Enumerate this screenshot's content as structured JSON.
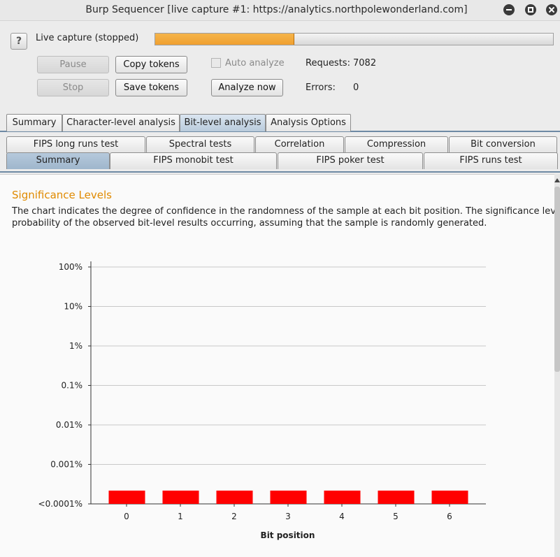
{
  "window": {
    "title": "Burp Sequencer [live capture #1: https://analytics.northpolewonderland.com]"
  },
  "capture": {
    "help_glyph": "?",
    "status": "Live capture (stopped)",
    "progress": 0.35
  },
  "buttons": {
    "pause": "Pause",
    "copy_tokens": "Copy tokens",
    "stop": "Stop",
    "save_tokens": "Save tokens",
    "analyze_now": "Analyze now"
  },
  "options": {
    "auto_analyze": "Auto analyze",
    "auto_analyze_checked": false
  },
  "stats": {
    "requests_label": "Requests:",
    "requests_value": "7082",
    "errors_label": "Errors:",
    "errors_value": "0"
  },
  "tabs": [
    "Summary",
    "Character-level analysis",
    "Bit-level analysis",
    "Analysis Options"
  ],
  "active_tab": "Bit-level analysis",
  "subtabs_row1": [
    "FIPS long runs test",
    "Spectral tests",
    "Correlation",
    "Compression",
    "Bit conversion"
  ],
  "subtabs_row2": [
    "Summary",
    "FIPS monobit test",
    "FIPS poker test",
    "FIPS runs test"
  ],
  "active_subtab": "Summary",
  "content": {
    "heading": "Significance Levels",
    "desc_line1": "The chart indicates the degree of confidence in the randomness of the sample at each bit position. The significance level a",
    "desc_line2": "probability of the observed bit-level results occurring, assuming that the sample is randomly generated."
  },
  "colors": {
    "heading": "#e08a00",
    "bar": "#ff0000",
    "progress": "#f0a030"
  },
  "chart_data": {
    "type": "bar",
    "xlabel": "Bit position",
    "categories": [
      "0",
      "1",
      "2",
      "3",
      "4",
      "5",
      "6"
    ],
    "y_ticks": [
      "100%",
      "10%",
      "1%",
      "0.1%",
      "0.01%",
      "0.001%",
      "<0.0001%"
    ],
    "values": [
      "<0.0001%",
      "<0.0001%",
      "<0.0001%",
      "<0.0001%",
      "<0.0001%",
      "<0.0001%",
      "<0.0001%"
    ],
    "grid": true
  }
}
